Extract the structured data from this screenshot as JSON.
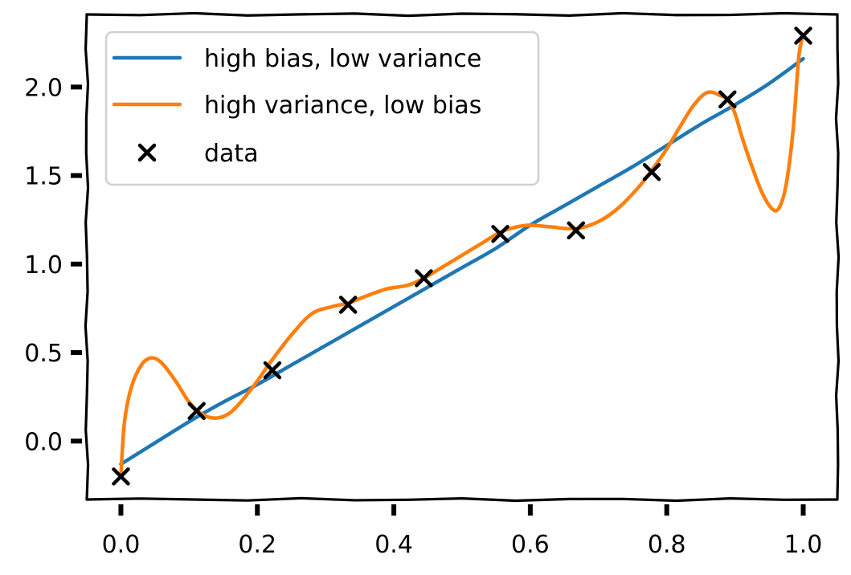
{
  "chart_data": {
    "type": "line",
    "title": "",
    "xlabel": "",
    "ylabel": "",
    "xlim": [
      -0.05,
      1.05
    ],
    "ylim": [
      -0.33,
      2.41
    ],
    "xticks": [
      {
        "value": 0.0,
        "label": "0.0"
      },
      {
        "value": 0.2,
        "label": "0.2"
      },
      {
        "value": 0.4,
        "label": "0.4"
      },
      {
        "value": 0.6,
        "label": "0.6"
      },
      {
        "value": 0.8,
        "label": "0.8"
      },
      {
        "value": 1.0,
        "label": "1.0"
      }
    ],
    "yticks": [
      {
        "value": 0.0,
        "label": "0.0"
      },
      {
        "value": 0.5,
        "label": "0.5"
      },
      {
        "value": 1.0,
        "label": "1.0"
      },
      {
        "value": 1.5,
        "label": "1.5"
      },
      {
        "value": 2.0,
        "label": "2.0"
      }
    ],
    "grid": false,
    "legend_position": "top-left",
    "series": [
      {
        "name": "high bias, low variance",
        "kind": "line",
        "color": "#1f77b4",
        "x": [
          0.0,
          0.05,
          0.1,
          0.15,
          0.2,
          0.25,
          0.3,
          0.35,
          0.4,
          0.45,
          0.5,
          0.55,
          0.6,
          0.65,
          0.7,
          0.75,
          0.8,
          0.85,
          0.9,
          0.95,
          1.0
        ],
        "y": [
          -0.13,
          -0.01,
          0.11,
          0.22,
          0.32,
          0.43,
          0.54,
          0.65,
          0.76,
          0.87,
          0.98,
          1.09,
          1.22,
          1.33,
          1.44,
          1.55,
          1.67,
          1.79,
          1.9,
          2.02,
          2.16
        ]
      },
      {
        "name": "high variance, low bias",
        "kind": "line",
        "color": "#ff7f0e",
        "x": [
          0.0,
          0.005,
          0.015,
          0.03,
          0.045,
          0.06,
          0.08,
          0.1,
          0.12,
          0.14,
          0.16,
          0.18,
          0.2,
          0.22,
          0.25,
          0.28,
          0.31,
          0.333,
          0.36,
          0.39,
          0.42,
          0.444,
          0.47,
          0.5,
          0.53,
          0.556,
          0.58,
          0.6,
          0.63,
          0.667,
          0.7,
          0.73,
          0.76,
          0.778,
          0.8,
          0.82,
          0.84,
          0.86,
          0.88,
          0.889,
          0.9,
          0.91,
          0.925,
          0.94,
          0.955,
          0.965,
          0.975,
          0.985,
          0.993,
          0.997,
          1.0
        ],
        "y": [
          -0.2,
          0.1,
          0.3,
          0.43,
          0.47,
          0.44,
          0.34,
          0.22,
          0.15,
          0.13,
          0.16,
          0.24,
          0.34,
          0.45,
          0.6,
          0.72,
          0.76,
          0.78,
          0.82,
          0.86,
          0.88,
          0.92,
          0.98,
          1.05,
          1.12,
          1.18,
          1.21,
          1.22,
          1.21,
          1.2,
          1.24,
          1.32,
          1.44,
          1.53,
          1.65,
          1.78,
          1.9,
          1.97,
          1.95,
          1.93,
          1.85,
          1.72,
          1.55,
          1.4,
          1.31,
          1.32,
          1.45,
          1.75,
          2.15,
          2.25,
          2.29
        ]
      },
      {
        "name": "data",
        "kind": "scatter",
        "color": "#000000",
        "marker": "x",
        "x": [
          0.0,
          0.111,
          0.222,
          0.333,
          0.444,
          0.556,
          0.667,
          0.778,
          0.889,
          1.0
        ],
        "y": [
          -0.2,
          0.17,
          0.4,
          0.77,
          0.92,
          1.17,
          1.19,
          1.52,
          1.93,
          2.29
        ]
      }
    ]
  }
}
